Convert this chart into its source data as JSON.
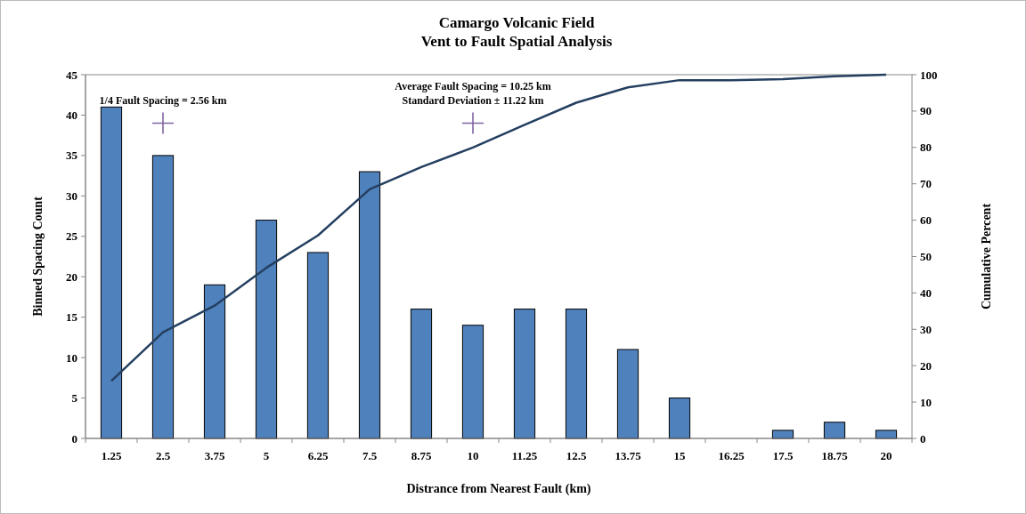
{
  "chart_data": {
    "type": "bar",
    "title": "Camargo Volcanic Field\nVent to Fault Spatial Analysis",
    "xlabel": "Distrance from Nearest Fault (km)",
    "ylabel": "Binned Spacing Count",
    "y2label": "Cumulative Percent",
    "categories": [
      "1.25",
      "2.5",
      "3.75",
      "5",
      "6.25",
      "7.5",
      "8.75",
      "10",
      "11.25",
      "12.5",
      "13.75",
      "15",
      "16.25",
      "17.5",
      "18.75",
      "20"
    ],
    "series": [
      {
        "color": "#4f81bd",
        "values": [
          41,
          35,
          19,
          27,
          23,
          33,
          16,
          14,
          16,
          16,
          11,
          5,
          0,
          1,
          2,
          1
        ]
      },
      {
        "type": "line",
        "axis": "y2",
        "color": "#243f60",
        "line_style": "solid",
        "values": [
          15.8,
          29.2,
          36.5,
          46.9,
          55.8,
          68.5,
          74.6,
          80,
          86.2,
          92.3,
          96.5,
          98.5,
          98.5,
          98.8,
          99.6,
          100
        ]
      },
      {
        "type": "scatter",
        "color": "#8064a2",
        "marker": "cross",
        "x": [
          "2.5",
          "10"
        ],
        "values": [
          39,
          39
        ]
      }
    ],
    "ylim": [
      0,
      45
    ],
    "yticks": [
      0,
      5,
      10,
      15,
      20,
      25,
      30,
      35,
      40,
      45
    ],
    "y2lim": [
      0,
      100
    ],
    "y2ticks": [
      0,
      10,
      20,
      30,
      40,
      50,
      60,
      70,
      80,
      90,
      100
    ],
    "annotations": [
      {
        "text": "1/4 Fault Spacing = 2.56 km",
        "x": "2.5",
        "y": 39
      },
      {
        "text": "Average Fault Spacing = 10.25 km\nStandard Deviation ± 11.22 km",
        "x": "10",
        "y": 39
      }
    ],
    "grid": false
  }
}
